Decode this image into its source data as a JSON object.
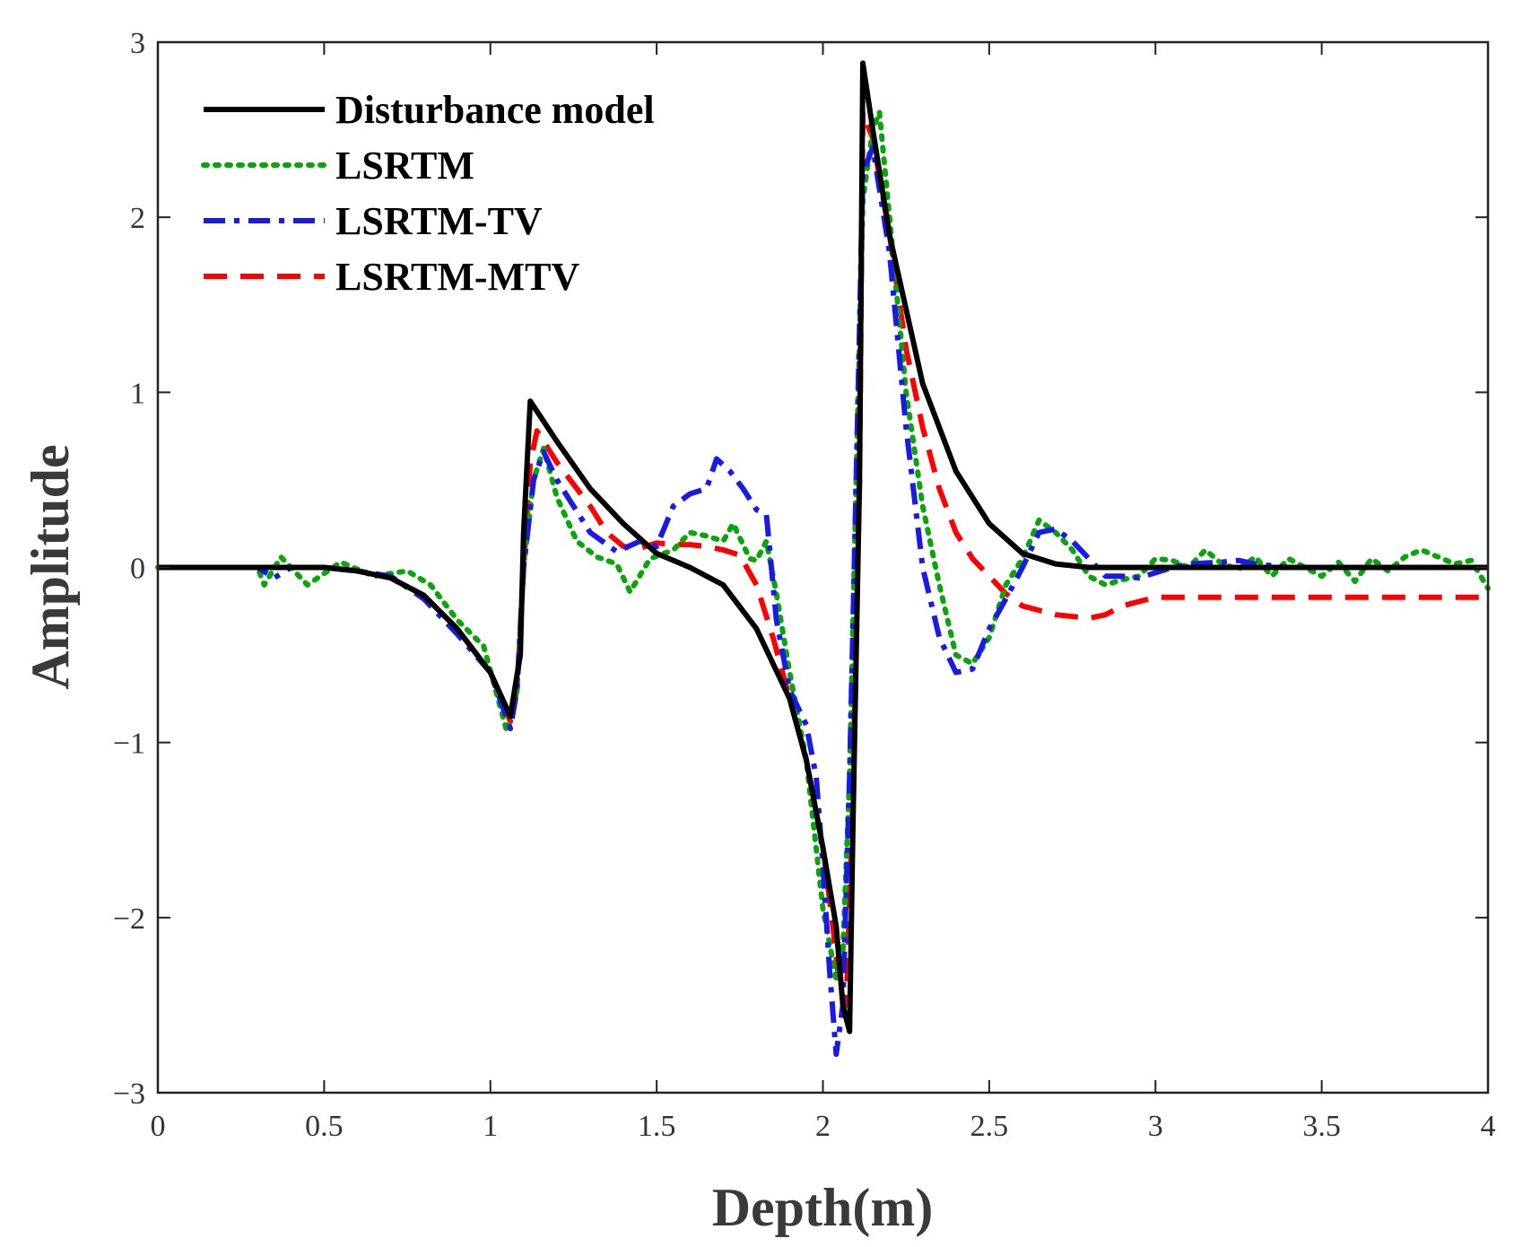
{
  "chart_data": {
    "type": "line",
    "title": "",
    "xlabel": "Depth(m)",
    "ylabel": "Amplitude",
    "xlim": [
      0,
      4
    ],
    "ylim": [
      -3,
      3
    ],
    "grid": false,
    "legend_position": "top-left",
    "x_ticks": [
      0,
      0.5,
      1,
      1.5,
      2,
      2.5,
      3,
      3.5,
      4
    ],
    "x_tick_labels": [
      "0",
      "0.5",
      "1",
      "1.5",
      "2",
      "2.5",
      "3",
      "3.5",
      "4"
    ],
    "y_ticks": [
      -3,
      -2,
      -1,
      0,
      1,
      2,
      3
    ],
    "y_tick_labels": [
      "−3",
      "−2",
      "−1",
      "0",
      "1",
      "2",
      "3"
    ],
    "series": [
      {
        "name": "Disturbance model",
        "color": "#000000",
        "style": "solid",
        "points": [
          [
            0,
            0
          ],
          [
            0.3,
            0
          ],
          [
            0.5,
            0
          ],
          [
            0.6,
            -0.02
          ],
          [
            0.7,
            -0.06
          ],
          [
            0.8,
            -0.16
          ],
          [
            0.9,
            -0.35
          ],
          [
            1.0,
            -0.6
          ],
          [
            1.06,
            -0.85
          ],
          [
            1.09,
            -0.5
          ],
          [
            1.1,
            0.2
          ],
          [
            1.12,
            0.95
          ],
          [
            1.2,
            0.72
          ],
          [
            1.3,
            0.45
          ],
          [
            1.4,
            0.25
          ],
          [
            1.5,
            0.08
          ],
          [
            1.6,
            0
          ],
          [
            1.7,
            -0.1
          ],
          [
            1.8,
            -0.35
          ],
          [
            1.9,
            -0.75
          ],
          [
            1.95,
            -1.1
          ],
          [
            2.0,
            -1.6
          ],
          [
            2.04,
            -2.05
          ],
          [
            2.06,
            -2.5
          ],
          [
            2.08,
            -2.65
          ],
          [
            2.09,
            -1.5
          ],
          [
            2.11,
            0.5
          ],
          [
            2.12,
            2.88
          ],
          [
            2.15,
            2.5
          ],
          [
            2.2,
            1.9
          ],
          [
            2.3,
            1.05
          ],
          [
            2.4,
            0.55
          ],
          [
            2.5,
            0.25
          ],
          [
            2.6,
            0.08
          ],
          [
            2.7,
            0.02
          ],
          [
            2.8,
            0
          ],
          [
            3.0,
            0
          ],
          [
            4.0,
            0
          ]
        ]
      },
      {
        "name": "LSRTM",
        "color": "#0aa50a",
        "style": "dotted",
        "points": [
          [
            0,
            0
          ],
          [
            0.3,
            0
          ],
          [
            0.32,
            -0.1
          ],
          [
            0.37,
            0.06
          ],
          [
            0.45,
            -0.1
          ],
          [
            0.55,
            0.03
          ],
          [
            0.65,
            -0.05
          ],
          [
            0.75,
            -0.02
          ],
          [
            0.82,
            -0.1
          ],
          [
            0.9,
            -0.3
          ],
          [
            0.98,
            -0.45
          ],
          [
            1.05,
            -0.94
          ],
          [
            1.08,
            -0.7
          ],
          [
            1.1,
            0
          ],
          [
            1.13,
            0.5
          ],
          [
            1.16,
            0.68
          ],
          [
            1.2,
            0.4
          ],
          [
            1.26,
            0.15
          ],
          [
            1.32,
            0.06
          ],
          [
            1.38,
            0.02
          ],
          [
            1.42,
            -0.14
          ],
          [
            1.48,
            0.05
          ],
          [
            1.55,
            0.1
          ],
          [
            1.6,
            0.2
          ],
          [
            1.65,
            0.18
          ],
          [
            1.7,
            0.15
          ],
          [
            1.73,
            0.25
          ],
          [
            1.78,
            0.05
          ],
          [
            1.8,
            0.04
          ],
          [
            1.83,
            0.15
          ],
          [
            1.86,
            -0.15
          ],
          [
            1.9,
            -0.6
          ],
          [
            1.95,
            -1.1
          ],
          [
            2.0,
            -1.95
          ],
          [
            2.04,
            -2.35
          ],
          [
            2.06,
            -2.2
          ],
          [
            2.08,
            -1.2
          ],
          [
            2.1,
            0.5
          ],
          [
            2.12,
            2.1
          ],
          [
            2.15,
            2.5
          ],
          [
            2.17,
            2.6
          ],
          [
            2.2,
            2.0
          ],
          [
            2.25,
            1.0
          ],
          [
            2.3,
            0.35
          ],
          [
            2.35,
            -0.1
          ],
          [
            2.4,
            -0.5
          ],
          [
            2.45,
            -0.55
          ],
          [
            2.5,
            -0.4
          ],
          [
            2.55,
            -0.1
          ],
          [
            2.6,
            0.05
          ],
          [
            2.65,
            0.27
          ],
          [
            2.7,
            0.2
          ],
          [
            2.75,
            0.1
          ],
          [
            2.8,
            -0.05
          ],
          [
            2.85,
            -0.1
          ],
          [
            2.9,
            -0.07
          ],
          [
            2.95,
            -0.05
          ],
          [
            3.0,
            0.05
          ],
          [
            3.05,
            0.04
          ],
          [
            3.1,
            0
          ],
          [
            3.15,
            0.1
          ],
          [
            3.2,
            0.02
          ],
          [
            3.25,
            -0.01
          ],
          [
            3.3,
            0.06
          ],
          [
            3.35,
            -0.05
          ],
          [
            3.4,
            0.05
          ],
          [
            3.45,
            0
          ],
          [
            3.5,
            -0.05
          ],
          [
            3.55,
            0.03
          ],
          [
            3.6,
            -0.08
          ],
          [
            3.65,
            0.05
          ],
          [
            3.7,
            -0.02
          ],
          [
            3.75,
            0.06
          ],
          [
            3.8,
            0.1
          ],
          [
            3.85,
            0.06
          ],
          [
            3.9,
            0.02
          ],
          [
            3.95,
            0.04
          ],
          [
            4.0,
            -0.12
          ]
        ]
      },
      {
        "name": "LSRTM-TV",
        "color": "#1a1ae6",
        "style": "dashdot",
        "points": [
          [
            0,
            0
          ],
          [
            0.3,
            0
          ],
          [
            0.35,
            -0.06
          ],
          [
            0.4,
            0
          ],
          [
            0.5,
            0
          ],
          [
            0.6,
            -0.02
          ],
          [
            0.7,
            -0.05
          ],
          [
            0.8,
            -0.18
          ],
          [
            0.9,
            -0.38
          ],
          [
            1.0,
            -0.6
          ],
          [
            1.06,
            -0.92
          ],
          [
            1.08,
            -0.7
          ],
          [
            1.1,
            0
          ],
          [
            1.13,
            0.5
          ],
          [
            1.16,
            0.66
          ],
          [
            1.2,
            0.5
          ],
          [
            1.3,
            0.2
          ],
          [
            1.38,
            0.09
          ],
          [
            1.45,
            0.15
          ],
          [
            1.5,
            0.12
          ],
          [
            1.55,
            0.35
          ],
          [
            1.6,
            0.42
          ],
          [
            1.65,
            0.45
          ],
          [
            1.68,
            0.62
          ],
          [
            1.72,
            0.55
          ],
          [
            1.76,
            0.45
          ],
          [
            1.8,
            0.33
          ],
          [
            1.83,
            0.3
          ],
          [
            1.86,
            -0.3
          ],
          [
            1.9,
            -0.7
          ],
          [
            1.95,
            -0.9
          ],
          [
            1.98,
            -1.2
          ],
          [
            2.0,
            -1.7
          ],
          [
            2.02,
            -2.3
          ],
          [
            2.04,
            -2.78
          ],
          [
            2.06,
            -2.5
          ],
          [
            2.08,
            -1.2
          ],
          [
            2.1,
            0.5
          ],
          [
            2.12,
            2.25
          ],
          [
            2.15,
            2.4
          ],
          [
            2.2,
            1.8
          ],
          [
            2.25,
            0.8
          ],
          [
            2.3,
            0
          ],
          [
            2.35,
            -0.4
          ],
          [
            2.4,
            -0.6
          ],
          [
            2.45,
            -0.58
          ],
          [
            2.5,
            -0.35
          ],
          [
            2.55,
            -0.18
          ],
          [
            2.6,
            0
          ],
          [
            2.65,
            0.2
          ],
          [
            2.7,
            0.22
          ],
          [
            2.75,
            0.15
          ],
          [
            2.8,
            0.05
          ],
          [
            2.85,
            -0.05
          ],
          [
            2.9,
            -0.05
          ],
          [
            2.95,
            -0.06
          ],
          [
            3.0,
            -0.03
          ],
          [
            3.05,
            0
          ],
          [
            3.1,
            0.02
          ],
          [
            3.2,
            0.03
          ],
          [
            3.25,
            0.04
          ],
          [
            3.3,
            0.02
          ],
          [
            3.4,
            0
          ],
          [
            4.0,
            0
          ]
        ]
      },
      {
        "name": "LSRTM-MTV",
        "color": "#ff0000",
        "style": "dashed",
        "points": [
          [
            0,
            0
          ],
          [
            0.3,
            0
          ],
          [
            0.5,
            0
          ],
          [
            0.6,
            -0.02
          ],
          [
            0.7,
            -0.06
          ],
          [
            0.8,
            -0.16
          ],
          [
            0.9,
            -0.35
          ],
          [
            1.0,
            -0.6
          ],
          [
            1.06,
            -0.88
          ],
          [
            1.08,
            -0.7
          ],
          [
            1.1,
            0
          ],
          [
            1.12,
            0.6
          ],
          [
            1.14,
            0.78
          ],
          [
            1.2,
            0.6
          ],
          [
            1.3,
            0.35
          ],
          [
            1.35,
            0.2
          ],
          [
            1.4,
            0.12
          ],
          [
            1.45,
            0.11
          ],
          [
            1.5,
            0.14
          ],
          [
            1.55,
            0.13
          ],
          [
            1.6,
            0.13
          ],
          [
            1.65,
            0.12
          ],
          [
            1.7,
            0.1
          ],
          [
            1.75,
            0.07
          ],
          [
            1.8,
            -0.1
          ],
          [
            1.85,
            -0.4
          ],
          [
            1.9,
            -0.75
          ],
          [
            1.95,
            -1.1
          ],
          [
            2.0,
            -1.6
          ],
          [
            2.03,
            -2.05
          ],
          [
            2.05,
            -2.4
          ],
          [
            2.07,
            -2.5
          ],
          [
            2.09,
            -1.3
          ],
          [
            2.11,
            0.5
          ],
          [
            2.12,
            2.6
          ],
          [
            2.15,
            2.45
          ],
          [
            2.2,
            1.9
          ],
          [
            2.25,
            1.25
          ],
          [
            2.3,
            0.8
          ],
          [
            2.35,
            0.45
          ],
          [
            2.4,
            0.2
          ],
          [
            2.45,
            0.05
          ],
          [
            2.5,
            -0.05
          ],
          [
            2.55,
            -0.15
          ],
          [
            2.6,
            -0.22
          ],
          [
            2.7,
            -0.27
          ],
          [
            2.8,
            -0.29
          ],
          [
            2.85,
            -0.27
          ],
          [
            2.9,
            -0.22
          ],
          [
            3.0,
            -0.17
          ],
          [
            3.5,
            -0.17
          ],
          [
            4.0,
            -0.17
          ]
        ]
      }
    ]
  }
}
